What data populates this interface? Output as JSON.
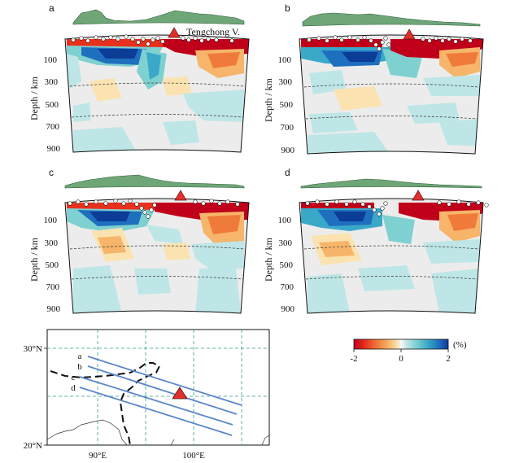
{
  "panels": [
    {
      "letter": "a",
      "volcano_label": "Tengchong V."
    },
    {
      "letter": "b"
    },
    {
      "letter": "c"
    },
    {
      "letter": "d"
    }
  ],
  "depth_axis": {
    "title": "Depth / km",
    "ticks": [
      "100",
      "300",
      "500",
      "700",
      "900"
    ]
  },
  "map": {
    "lat_labels": [
      "30°N",
      "20°N"
    ],
    "lon_labels": [
      "90°E",
      "100°E"
    ],
    "profile_labels": [
      "a",
      "b",
      "c",
      "d"
    ]
  },
  "colorbar": {
    "ticks": [
      "-2",
      "0",
      "2"
    ],
    "unit": "(%)",
    "colors": [
      "#c0001a",
      "#e8301c",
      "#f07a3a",
      "#f6b56a",
      "#fae3b0",
      "#f2f2f2",
      "#bfe6e6",
      "#7fd0d0",
      "#3aa9c9",
      "#1f6fbf",
      "#0b3c96"
    ]
  },
  "colors": {
    "topography": "#6fa678",
    "volcano": "#e0302c",
    "profile_line": "#5b86c9",
    "grid": "#2e9e8a"
  }
}
